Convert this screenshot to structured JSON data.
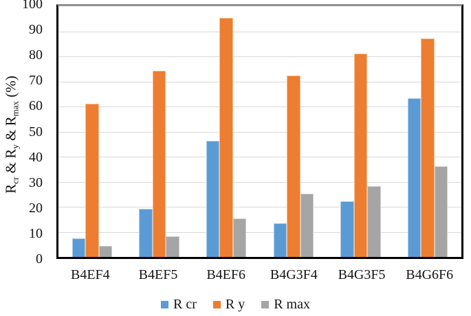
{
  "chart_data": {
    "type": "bar",
    "categories": [
      "B4EF4",
      "B4EF5",
      "B4EF6",
      "B4G3F4",
      "B4G3F5",
      "B4G6F6"
    ],
    "series": [
      {
        "name": "R cr",
        "color": "#5B9BD5",
        "edge_color": "#A9CCE9",
        "values": [
          7.3,
          19.3,
          46.2,
          13.3,
          22.2,
          63.2
        ]
      },
      {
        "name": "R y",
        "color": "#ED7D31",
        "edge_color": "#F5BE8E",
        "values": [
          61.2,
          74.2,
          95.3,
          72.2,
          81.0,
          87.2
        ]
      },
      {
        "name": "R max",
        "color": "#A5A5A5",
        "edge_color": "#CFCFCF",
        "values": [
          4.3,
          8.3,
          15.4,
          25.3,
          28.3,
          36.2
        ]
      }
    ],
    "title": "",
    "xlabel": "",
    "ylabel": "Rcr & Ry & Rmax (%)",
    "ylim": [
      0,
      100
    ],
    "yticks": [
      0,
      10,
      20,
      30,
      40,
      50,
      60,
      70,
      80,
      90,
      100
    ],
    "grid": true,
    "gridline_color": "#d9d9d9",
    "legend_position": "bottom"
  },
  "y_axis_title_parts": {
    "r1": "R",
    "sub1": "cr",
    "mid1": " & R",
    "sub2": "y",
    "mid2": " & R",
    "sub3": "max",
    "suffix": " (%)"
  }
}
